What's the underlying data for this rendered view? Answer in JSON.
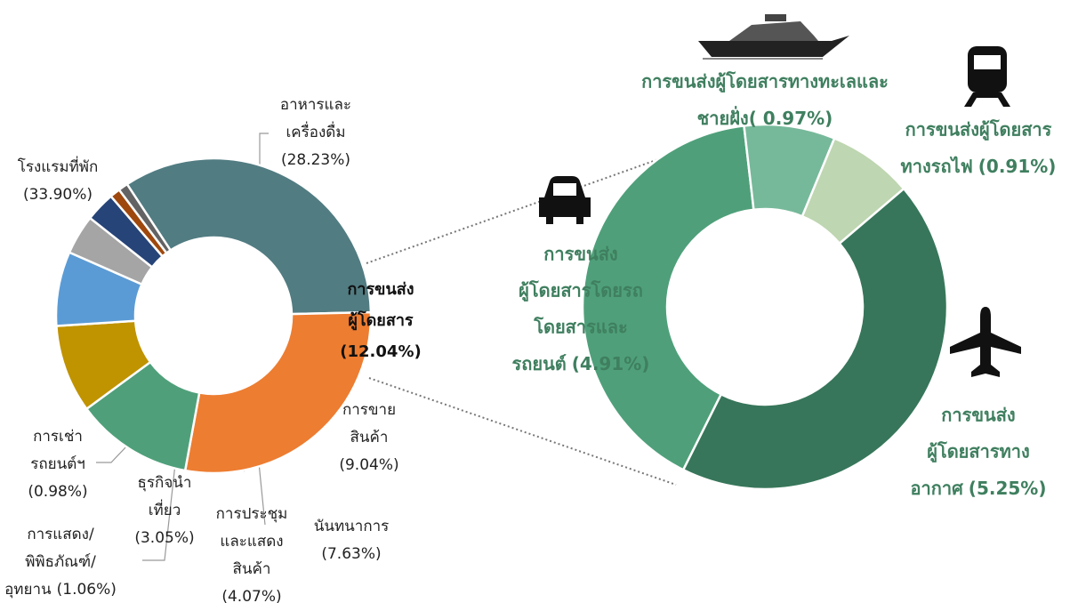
{
  "chart_data": [
    {
      "type": "donut",
      "categories": [
        [
          "โรงแรมที่พัก"
        ],
        [
          "อาหารและ",
          "เครื่องดื่ม"
        ],
        [
          "การขนส่ง",
          "ผู้โดยสาร"
        ],
        [
          "การขาย",
          "สินค้า"
        ],
        [
          "นันทนาการ"
        ],
        [
          "การประชุม",
          "และแสดง",
          "สินค้า"
        ],
        [
          "ธุรกิจนำ",
          "เที่ยว"
        ],
        [
          "การแสดง/",
          "พิพิธภัณฑ์/",
          "อุทยาน"
        ],
        [
          "การเช่า",
          "รถยนต์ฯ"
        ]
      ],
      "values": [
        33.9,
        28.23,
        12.04,
        9.04,
        7.63,
        4.07,
        3.05,
        1.06,
        0.98
      ],
      "value_labels": [
        "(33.90%)",
        "(28.23%)",
        "(12.04%)",
        "(9.04%)",
        "(7.63%)",
        "(4.07%)",
        "(3.05%)",
        "(1.06%)",
        "(0.98%)"
      ],
      "colors": [
        "#517c82",
        "#ed7d31",
        "#4fa07a",
        "#c09300",
        "#5b9bd5",
        "#a5a5a5",
        "#264478",
        "#9e480e",
        "#636363"
      ]
    },
    {
      "type": "donut",
      "categories": [
        [
          "การขนส่ง",
          "ผู้โดยสารโดยรถ",
          "โดยสารและ",
          "รถยนต์"
        ],
        [
          "การขนส่งผู้โดยสารทางทะเลและ",
          "ชายฝั่ง"
        ],
        [
          "การขนส่งผู้โดยสาร",
          "ทางรถไฟ"
        ],
        [
          "การขนส่ง",
          "ผู้โดยสารทาง",
          "อากาศ"
        ]
      ],
      "values": [
        4.91,
        0.97,
        0.91,
        5.25
      ],
      "value_labels": [
        "(4.91%)",
        "( 0.97%)",
        "(0.91%)",
        "(5.25%)"
      ],
      "colors": [
        "#4fa07a",
        "#76b99a",
        "#bed6b1",
        "#37765a"
      ]
    }
  ]
}
